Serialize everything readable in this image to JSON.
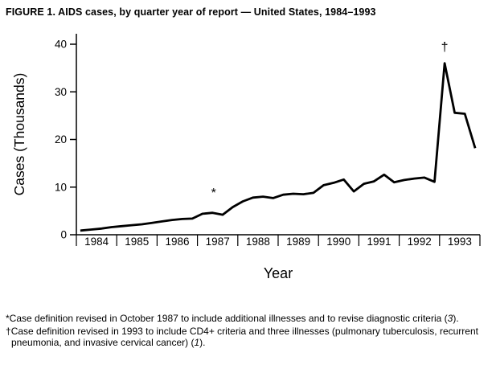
{
  "chart_data": {
    "type": "line",
    "title": "FIGURE 1. AIDS cases, by quarter year of report — United States, 1984–1993",
    "xlabel": "Year",
    "ylabel": "Cases (Thousands)",
    "ylim": [
      0,
      40
    ],
    "yticks": [
      0,
      10,
      20,
      30,
      40
    ],
    "x_unit": "quarter",
    "year_labels": [
      "1984",
      "1985",
      "1986",
      "1987",
      "1988",
      "1989",
      "1990",
      "1991",
      "1992",
      "1993"
    ],
    "values": [
      0.9,
      1.1,
      1.3,
      1.6,
      1.8,
      2.0,
      2.2,
      2.5,
      2.8,
      3.1,
      3.3,
      3.4,
      4.4,
      4.6,
      4.2,
      5.8,
      7.0,
      7.8,
      8.0,
      7.7,
      8.4,
      8.6,
      8.5,
      8.8,
      10.4,
      10.9,
      11.6,
      9.1,
      10.7,
      11.2,
      12.6,
      11.0,
      11.5,
      11.8,
      12.0,
      11.1,
      36.0,
      25.6,
      25.4,
      18.4
    ],
    "line_color": "#000000",
    "grid": false,
    "legend": "none",
    "annotations": [
      {
        "symbol": "*",
        "x_quarter": 13.1,
        "y_value": 7.9
      },
      {
        "symbol": "†",
        "x_quarter": 36.0,
        "y_value": 38.6
      }
    ]
  },
  "footnotes": [
    {
      "marker": "*",
      "text": "Case definition revised in October 1987 to include additional illnesses and to revise diagnostic criteria (",
      "ref": "3",
      "suffix": ")."
    },
    {
      "marker": "†",
      "text": "Case definition revised in 1993 to include CD4+ criteria and three illnesses (pulmonary tuberculosis, recurrent pneumonia, and invasive cervical cancer) (",
      "ref": "1",
      "suffix": ")."
    }
  ]
}
